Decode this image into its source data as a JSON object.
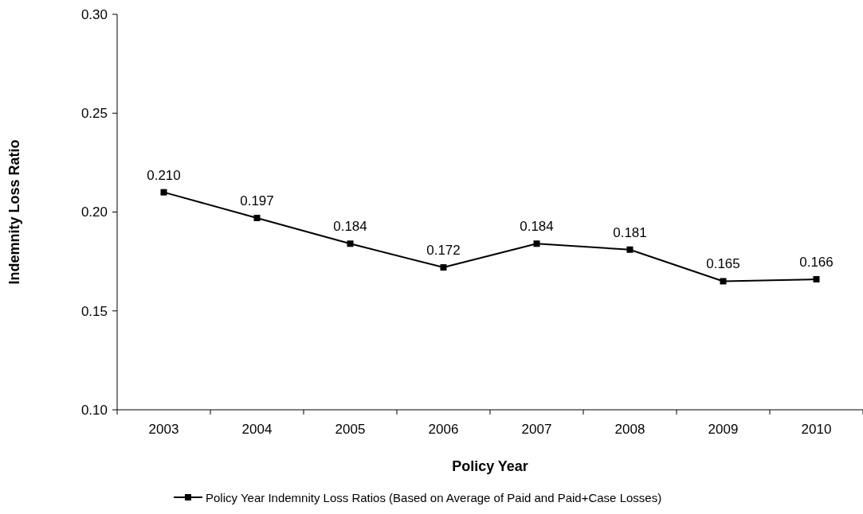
{
  "chart_data": {
    "type": "line",
    "xlabel": "Policy Year",
    "ylabel": "Indemnity Loss Ratio",
    "categories": [
      "2003",
      "2004",
      "2005",
      "2006",
      "2007",
      "2008",
      "2009",
      "2010"
    ],
    "series": [
      {
        "name": "Policy Year Indemnity Loss Ratios (Based on Average of Paid and Paid+Case Losses)",
        "color": "#000000",
        "values": [
          0.21,
          0.197,
          0.184,
          0.172,
          0.184,
          0.181,
          0.165,
          0.166
        ]
      }
    ],
    "value_labels": [
      "0.210",
      "0.197",
      "0.184",
      "0.172",
      "0.184",
      "0.181",
      "0.165",
      "0.166"
    ],
    "ylim": [
      0.1,
      0.3
    ],
    "yticks": [
      {
        "value": 0.1,
        "label": "0.10"
      },
      {
        "value": 0.15,
        "label": "0.15"
      },
      {
        "value": 0.2,
        "label": "0.20"
      },
      {
        "value": 0.25,
        "label": "0.25"
      },
      {
        "value": 0.3,
        "label": "0.30"
      }
    ],
    "grid": false,
    "legend": "bottom",
    "marker": "square",
    "line_style": "solid"
  }
}
